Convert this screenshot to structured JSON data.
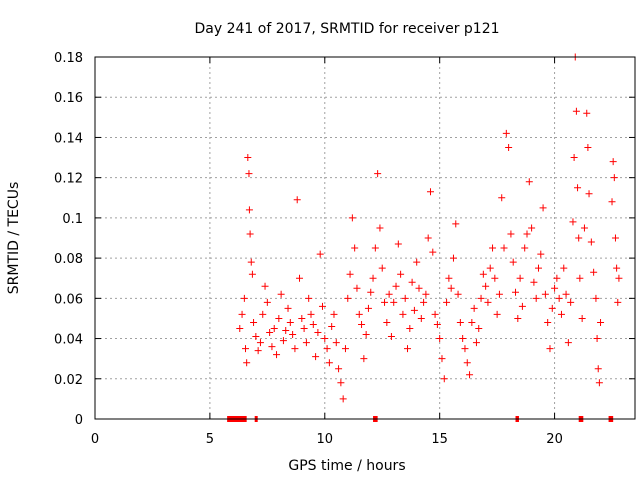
{
  "chart_data": {
    "type": "scatter",
    "title": "Day 241 of 2017, SRMTID for receiver p121",
    "xlabel": "GPS time / hours",
    "ylabel": "SRMTID / TECUs",
    "xlim": [
      0,
      23.5
    ],
    "ylim": [
      0,
      0.18
    ],
    "xticks": [
      0,
      5,
      10,
      15,
      20
    ],
    "xtick_labels": [
      "0",
      "5",
      "10",
      "15",
      "20"
    ],
    "yticks": [
      0,
      0.02,
      0.04,
      0.06,
      0.08,
      0.1,
      0.12,
      0.14,
      0.16,
      0.18
    ],
    "ytick_labels": [
      "0",
      "0.02",
      "0.04",
      "0.06",
      "0.08",
      "0.1",
      "0.12",
      "0.14",
      "0.16",
      "0.18"
    ],
    "grid": true,
    "marker": "+",
    "color": "#ff0000",
    "series": [
      {
        "name": "SRMTID",
        "points": [
          [
            6.3,
            0.045
          ],
          [
            6.4,
            0.052
          ],
          [
            6.5,
            0.06
          ],
          [
            6.55,
            0.035
          ],
          [
            6.6,
            0.028
          ],
          [
            6.65,
            0.13
          ],
          [
            6.7,
            0.122
          ],
          [
            6.72,
            0.104
          ],
          [
            6.75,
            0.092
          ],
          [
            6.8,
            0.078
          ],
          [
            6.85,
            0.072
          ],
          [
            6.9,
            0.048
          ],
          [
            7.0,
            0.041
          ],
          [
            7.1,
            0.034
          ],
          [
            7.2,
            0.038
          ],
          [
            7.3,
            0.052
          ],
          [
            7.4,
            0.066
          ],
          [
            7.5,
            0.058
          ],
          [
            7.6,
            0.043
          ],
          [
            7.7,
            0.036
          ],
          [
            7.8,
            0.045
          ],
          [
            7.9,
            0.032
          ],
          [
            8.0,
            0.05
          ],
          [
            8.1,
            0.062
          ],
          [
            8.2,
            0.039
          ],
          [
            8.3,
            0.044
          ],
          [
            8.4,
            0.055
          ],
          [
            8.5,
            0.048
          ],
          [
            8.6,
            0.042
          ],
          [
            8.7,
            0.035
          ],
          [
            8.8,
            0.109
          ],
          [
            8.9,
            0.07
          ],
          [
            9.0,
            0.05
          ],
          [
            9.1,
            0.045
          ],
          [
            9.2,
            0.038
          ],
          [
            9.3,
            0.06
          ],
          [
            9.4,
            0.052
          ],
          [
            9.5,
            0.047
          ],
          [
            9.6,
            0.031
          ],
          [
            9.7,
            0.043
          ],
          [
            9.8,
            0.082
          ],
          [
            9.9,
            0.056
          ],
          [
            10.0,
            0.04
          ],
          [
            10.1,
            0.035
          ],
          [
            10.2,
            0.028
          ],
          [
            10.3,
            0.046
          ],
          [
            10.4,
            0.052
          ],
          [
            10.5,
            0.038
          ],
          [
            10.6,
            0.025
          ],
          [
            10.7,
            0.018
          ],
          [
            10.8,
            0.01
          ],
          [
            10.9,
            0.035
          ],
          [
            11.0,
            0.06
          ],
          [
            11.1,
            0.072
          ],
          [
            11.2,
            0.1
          ],
          [
            11.3,
            0.085
          ],
          [
            11.4,
            0.065
          ],
          [
            11.5,
            0.052
          ],
          [
            11.6,
            0.047
          ],
          [
            11.7,
            0.03
          ],
          [
            11.8,
            0.042
          ],
          [
            11.9,
            0.055
          ],
          [
            12.0,
            0.063
          ],
          [
            12.1,
            0.07
          ],
          [
            12.2,
            0.085
          ],
          [
            12.3,
            0.122
          ],
          [
            12.4,
            0.095
          ],
          [
            12.5,
            0.075
          ],
          [
            12.6,
            0.058
          ],
          [
            12.7,
            0.048
          ],
          [
            12.8,
            0.062
          ],
          [
            12.9,
            0.041
          ],
          [
            13.0,
            0.058
          ],
          [
            13.1,
            0.066
          ],
          [
            13.2,
            0.087
          ],
          [
            13.3,
            0.072
          ],
          [
            13.4,
            0.052
          ],
          [
            13.5,
            0.06
          ],
          [
            13.6,
            0.035
          ],
          [
            13.7,
            0.045
          ],
          [
            13.8,
            0.068
          ],
          [
            13.9,
            0.054
          ],
          [
            14.0,
            0.078
          ],
          [
            14.1,
            0.065
          ],
          [
            14.2,
            0.05
          ],
          [
            14.3,
            0.058
          ],
          [
            14.4,
            0.062
          ],
          [
            14.5,
            0.09
          ],
          [
            14.6,
            0.113
          ],
          [
            14.7,
            0.083
          ],
          [
            14.8,
            0.052
          ],
          [
            14.9,
            0.047
          ],
          [
            15.0,
            0.04
          ],
          [
            15.1,
            0.03
          ],
          [
            15.2,
            0.02
          ],
          [
            15.3,
            0.058
          ],
          [
            15.4,
            0.07
          ],
          [
            15.5,
            0.065
          ],
          [
            15.6,
            0.08
          ],
          [
            15.7,
            0.097
          ],
          [
            15.8,
            0.062
          ],
          [
            15.9,
            0.048
          ],
          [
            16.0,
            0.04
          ],
          [
            16.1,
            0.035
          ],
          [
            16.2,
            0.028
          ],
          [
            16.3,
            0.022
          ],
          [
            16.4,
            0.048
          ],
          [
            16.5,
            0.055
          ],
          [
            16.6,
            0.038
          ],
          [
            16.7,
            0.045
          ],
          [
            16.8,
            0.06
          ],
          [
            16.9,
            0.072
          ],
          [
            17.0,
            0.066
          ],
          [
            17.1,
            0.058
          ],
          [
            17.2,
            0.075
          ],
          [
            17.3,
            0.085
          ],
          [
            17.4,
            0.07
          ],
          [
            17.5,
            0.052
          ],
          [
            17.6,
            0.062
          ],
          [
            17.7,
            0.11
          ],
          [
            17.8,
            0.085
          ],
          [
            17.9,
            0.142
          ],
          [
            18.0,
            0.135
          ],
          [
            18.1,
            0.092
          ],
          [
            18.2,
            0.078
          ],
          [
            18.3,
            0.063
          ],
          [
            18.4,
            0.05
          ],
          [
            18.5,
            0.07
          ],
          [
            18.6,
            0.056
          ],
          [
            18.7,
            0.085
          ],
          [
            18.8,
            0.092
          ],
          [
            18.9,
            0.118
          ],
          [
            19.0,
            0.095
          ],
          [
            19.1,
            0.068
          ],
          [
            19.2,
            0.06
          ],
          [
            19.3,
            0.075
          ],
          [
            19.4,
            0.082
          ],
          [
            19.5,
            0.105
          ],
          [
            19.6,
            0.062
          ],
          [
            19.7,
            0.048
          ],
          [
            19.8,
            0.035
          ],
          [
            19.9,
            0.055
          ],
          [
            20.0,
            0.065
          ],
          [
            20.1,
            0.07
          ],
          [
            20.2,
            0.06
          ],
          [
            20.3,
            0.052
          ],
          [
            20.4,
            0.075
          ],
          [
            20.5,
            0.062
          ],
          [
            20.6,
            0.038
          ],
          [
            20.7,
            0.058
          ],
          [
            20.8,
            0.098
          ],
          [
            20.85,
            0.13
          ],
          [
            20.9,
            0.18
          ],
          [
            20.95,
            0.153
          ],
          [
            21.0,
            0.115
          ],
          [
            21.05,
            0.09
          ],
          [
            21.1,
            0.07
          ],
          [
            21.2,
            0.05
          ],
          [
            21.3,
            0.095
          ],
          [
            21.4,
            0.152
          ],
          [
            21.45,
            0.135
          ],
          [
            21.5,
            0.112
          ],
          [
            21.6,
            0.088
          ],
          [
            21.7,
            0.073
          ],
          [
            21.8,
            0.06
          ],
          [
            21.85,
            0.04
          ],
          [
            21.9,
            0.025
          ],
          [
            21.95,
            0.018
          ],
          [
            22.0,
            0.048
          ],
          [
            22.5,
            0.108
          ],
          [
            22.55,
            0.128
          ],
          [
            22.6,
            0.12
          ],
          [
            22.65,
            0.09
          ],
          [
            22.7,
            0.075
          ],
          [
            22.75,
            0.058
          ],
          [
            22.8,
            0.07
          ]
        ]
      }
    ],
    "bottom_marks": [
      {
        "x0": 5.75,
        "x1": 6.6
      },
      {
        "x0": 6.95,
        "x1": 7.05
      },
      {
        "x0": 12.1,
        "x1": 12.3
      },
      {
        "x0": 18.3,
        "x1": 18.45
      },
      {
        "x0": 21.05,
        "x1": 21.25
      },
      {
        "x0": 22.35,
        "x1": 22.55
      }
    ]
  }
}
